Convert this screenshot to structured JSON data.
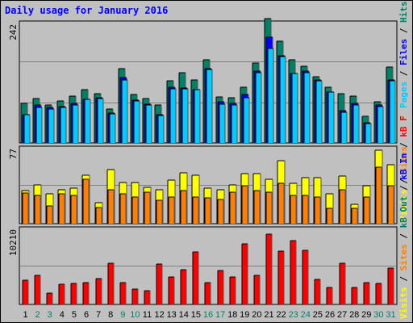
{
  "chart_data": [
    {
      "type": "bar",
      "title": "Daily usage for January 2016",
      "ytick": "242",
      "ylabel_parts": [
        "Pages",
        "Files",
        "Hits"
      ],
      "ylabel_colors": [
        "#00ccff",
        "#0000ff",
        "#008066"
      ],
      "categories": [
        "1",
        "2",
        "3",
        "4",
        "5",
        "6",
        "7",
        "8",
        "9",
        "10",
        "11",
        "12",
        "13",
        "14",
        "15",
        "16",
        "17",
        "18",
        "19",
        "20",
        "21",
        "22",
        "23",
        "24",
        "25",
        "26",
        "27",
        "28",
        "29",
        "30",
        "31"
      ],
      "weekend_days": [
        "2",
        "3",
        "9",
        "10",
        "16",
        "17",
        "23",
        "24",
        "30",
        "31"
      ],
      "ylim": [
        0,
        242
      ],
      "series": [
        {
          "name": "Hits",
          "color": "#008066",
          "values": [
            80,
            90,
            78,
            85,
            96,
            108,
            101,
            69,
            152,
            99,
            90,
            78,
            127,
            144,
            129,
            170,
            94,
            93,
            114,
            163,
            254,
            208,
            169,
            157,
            135,
            114,
            100,
            95,
            55,
            84,
            155
          ]
        },
        {
          "name": "Files",
          "color": "#0000ff",
          "values": [
            58,
            78,
            73,
            74,
            81,
            89,
            92,
            61,
            133,
            87,
            79,
            57,
            113,
            112,
            108,
            152,
            84,
            81,
            99,
            147,
            216,
            178,
            142,
            147,
            129,
            104,
            66,
            80,
            41,
            77,
            128
          ]
        },
        {
          "name": "Pages",
          "color": "#00ccff",
          "values": [
            57,
            73,
            69,
            72,
            78,
            89,
            91,
            60,
            128,
            85,
            78,
            56,
            110,
            111,
            108,
            150,
            79,
            78,
            93,
            144,
            193,
            176,
            141,
            143,
            127,
            103,
            63,
            78,
            40,
            74,
            127
          ]
        }
      ]
    },
    {
      "type": "bar",
      "ytick": "77",
      "ylabel_parts": [
        "Visits",
        "Sites"
      ],
      "ylabel_colors": [
        "#ffff00",
        "#ff8000"
      ],
      "categories": [
        "1",
        "2",
        "3",
        "4",
        "5",
        "6",
        "7",
        "8",
        "9",
        "10",
        "11",
        "12",
        "13",
        "14",
        "15",
        "16",
        "17",
        "18",
        "19",
        "20",
        "21",
        "22",
        "23",
        "24",
        "25",
        "26",
        "27",
        "28",
        "29",
        "30",
        "31"
      ],
      "ylim": [
        0,
        77
      ],
      "series": [
        {
          "name": "Visits",
          "color": "#ffff00",
          "values": [
            34,
            40,
            31,
            35,
            37,
            50,
            22,
            56,
            43,
            43,
            38,
            35,
            45,
            53,
            50,
            37,
            35,
            40,
            52,
            52,
            46,
            65,
            42,
            48,
            48,
            31,
            49,
            20,
            39,
            76,
            61
          ]
        },
        {
          "name": "Sites",
          "color": "#ff8000",
          "values": [
            32,
            29,
            18,
            31,
            29,
            46,
            17,
            35,
            31,
            28,
            33,
            24,
            28,
            34,
            28,
            27,
            25,
            33,
            39,
            34,
            33,
            42,
            29,
            29,
            28,
            16,
            35,
            16,
            28,
            59,
            39
          ]
        }
      ]
    },
    {
      "type": "bar",
      "ytick": "10210",
      "ylabel_parts": [
        "Visits",
        "Sites",
        "kB Out",
        "kB In",
        "kB F"
      ],
      "ylabel_colors": [
        "#ffff00",
        "#ff8000",
        "#008066",
        "#0000ff",
        "#ff0000"
      ],
      "categories": [
        "1",
        "2",
        "3",
        "4",
        "5",
        "6",
        "7",
        "8",
        "9",
        "10",
        "11",
        "12",
        "13",
        "14",
        "15",
        "16",
        "17",
        "18",
        "19",
        "20",
        "21",
        "22",
        "23",
        "24",
        "25",
        "26",
        "27",
        "28",
        "29",
        "30",
        "31"
      ],
      "ylim": [
        0,
        10210
      ],
      "series": [
        {
          "name": "kB F",
          "color": "#ff0000",
          "values": [
            3300,
            4000,
            1500,
            2800,
            2900,
            3000,
            3600,
            5700,
            3000,
            2100,
            1900,
            5600,
            3800,
            4800,
            7200,
            3000,
            4700,
            3800,
            8300,
            4000,
            9700,
            7300,
            8800,
            7400,
            3400,
            2300,
            5700,
            2300,
            3000,
            2900,
            5000
          ]
        }
      ]
    }
  ]
}
